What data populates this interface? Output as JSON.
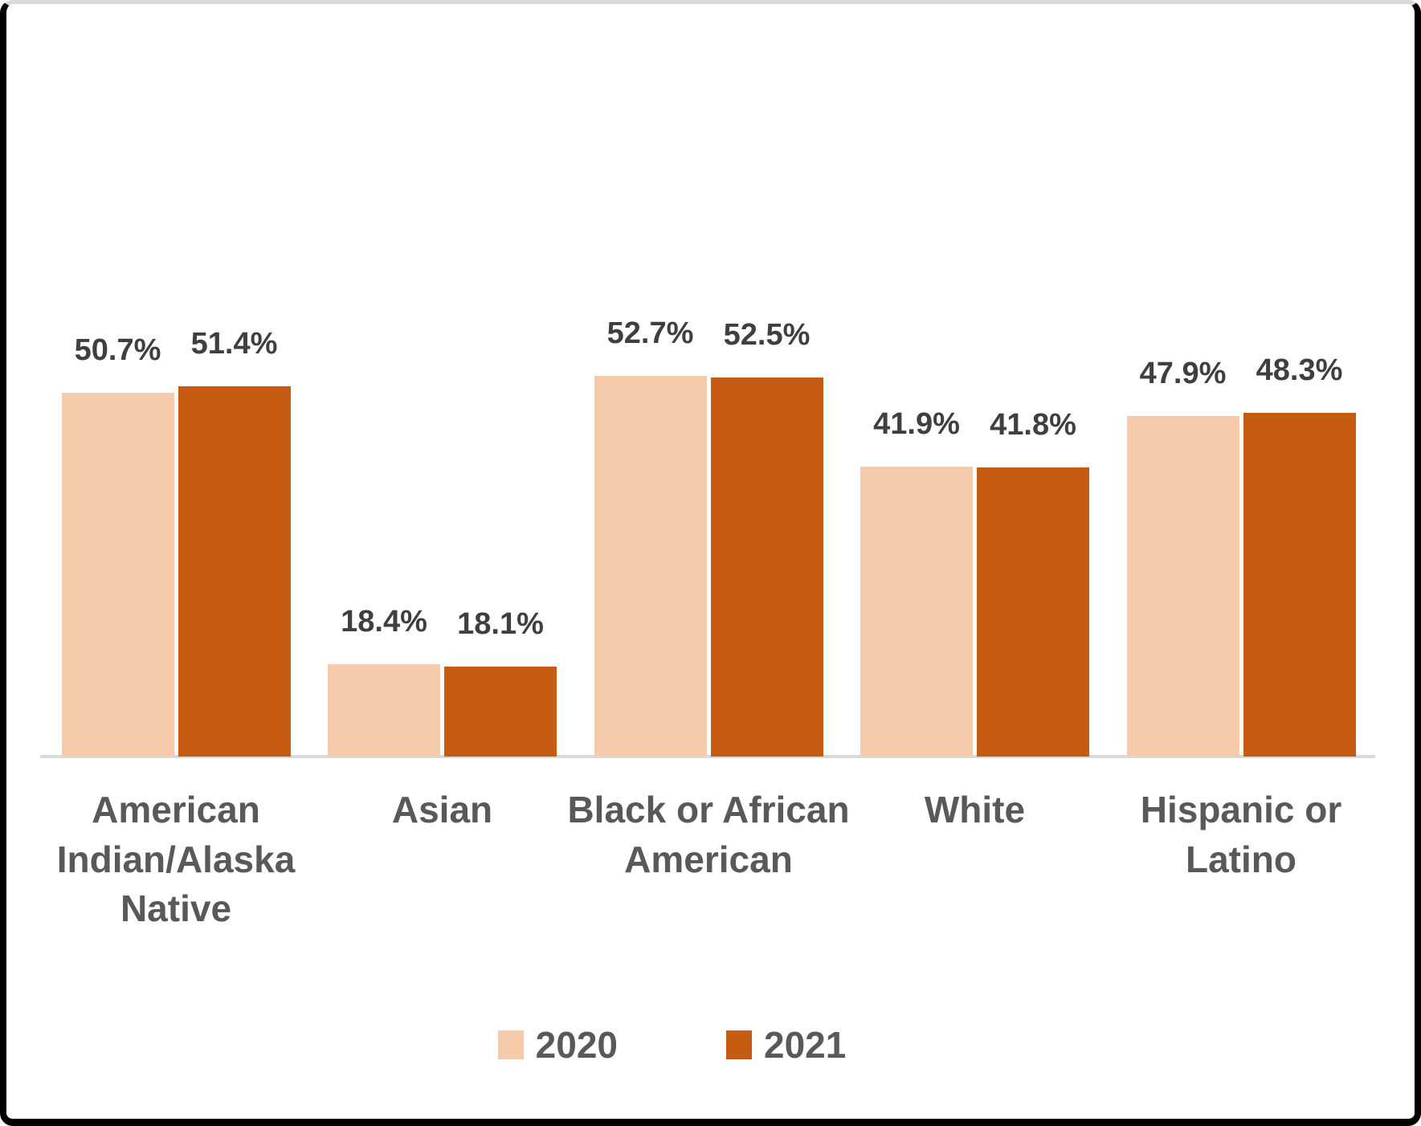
{
  "chart_data": {
    "type": "bar",
    "title": "",
    "xlabel": "",
    "ylabel": "",
    "categories": [
      "American Indian/Alaska Native",
      "Asian",
      "Black or African American",
      "White",
      "Hispanic or Latino"
    ],
    "series": [
      {
        "name": "2020",
        "color": "#F6CBAB",
        "values": [
          50.7,
          18.4,
          52.7,
          41.9,
          47.9
        ],
        "data_labels": [
          "50.7%",
          "18.4%",
          "52.7%",
          "41.9%",
          "47.9%"
        ]
      },
      {
        "name": "2021",
        "color": "#C55C11",
        "values": [
          51.4,
          18.1,
          52.5,
          41.8,
          48.3
        ],
        "data_labels": [
          "51.4%",
          "18.1%",
          "52.5%",
          "41.8%",
          "48.3%"
        ]
      }
    ],
    "ylim": [
      7.4,
      58.5
    ],
    "grid": false,
    "value_axis_visible": false,
    "legend_position": "bottom",
    "value_suffix": "%"
  },
  "colors": {
    "value_label_text": "#3F3F3F",
    "category_label_text": "#595959",
    "legend_text": "#595959",
    "axis_line": "#D9D9D9",
    "frame_border": "#000000",
    "frame_top_edge": "#D9D9D9",
    "background": "#FFFFFF"
  }
}
